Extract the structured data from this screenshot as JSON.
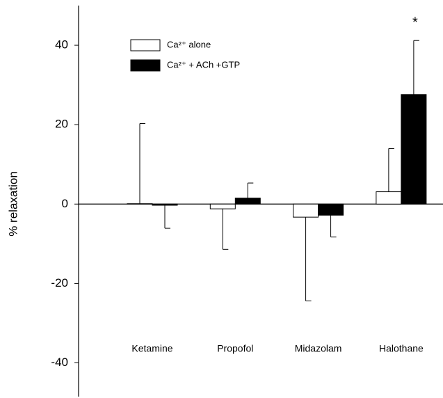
{
  "chart_data": {
    "type": "bar",
    "y_label": "% relaxation",
    "categories": [
      "Ketamine",
      "Propofol",
      "Midazolam",
      "Halothane"
    ],
    "series": [
      {
        "name": "Ca²⁺ alone",
        "color": "#ffffff",
        "values": [
          0.1,
          -1.2,
          -3.3,
          3.1
        ],
        "errors": [
          20.2,
          10.2,
          21.1,
          10.9
        ]
      },
      {
        "name": "Ca²⁺ + ACh +GTP",
        "color": "#000000",
        "values": [
          -0.3,
          1.5,
          -2.8,
          27.6
        ],
        "errors": [
          5.8,
          3.8,
          5.5,
          13.6
        ]
      }
    ],
    "annotations": [
      {
        "text": "*",
        "category": "Halothane",
        "series": 1
      }
    ],
    "ylim": [
      -48.5,
      50
    ],
    "yticks": [
      -40,
      -20,
      0,
      20,
      40
    ],
    "grid": false,
    "legend": "upper left"
  }
}
